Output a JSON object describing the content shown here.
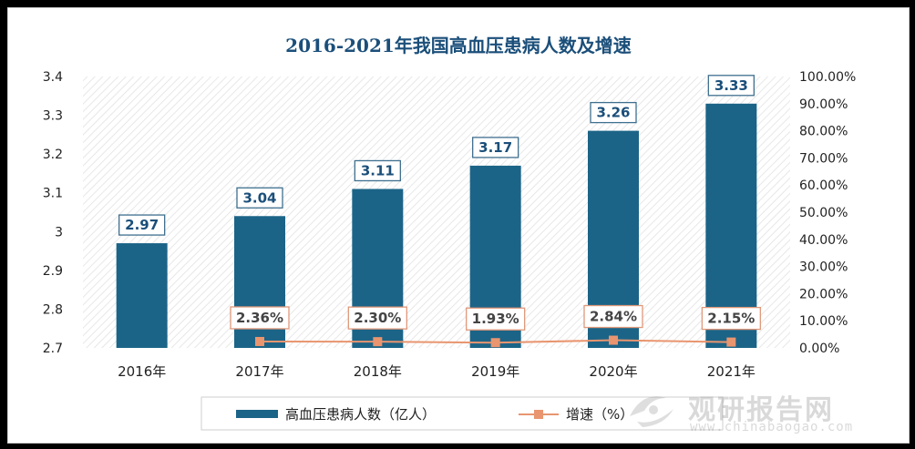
{
  "chart_data": {
    "type": "bar",
    "title": "2016-2021年我国高血压患病人数及增速",
    "categories": [
      "2016年",
      "2017年",
      "2018年",
      "2019年",
      "2020年",
      "2021年"
    ],
    "series": [
      {
        "name": "高血压患病人数（亿人）",
        "type": "bar",
        "axis": "left",
        "values": [
          2.97,
          3.04,
          3.11,
          3.17,
          3.26,
          3.33
        ],
        "labels": [
          "2.97",
          "3.04",
          "3.11",
          "3.17",
          "3.26",
          "3.33"
        ],
        "color": "#1b6487"
      },
      {
        "name": "增速（%）",
        "type": "line",
        "axis": "right",
        "values": [
          null,
          2.36,
          2.3,
          1.93,
          2.84,
          2.15
        ],
        "labels": [
          "",
          "2.36%",
          "2.30%",
          "1.93%",
          "2.84%",
          "2.15%"
        ],
        "color": "#e9956f"
      }
    ],
    "y_left": {
      "range": [
        2.7,
        3.4
      ],
      "ticks": [
        "2.7",
        "2.8",
        "2.9",
        "3",
        "3.1",
        "3.2",
        "3.3",
        "3.4"
      ]
    },
    "y_right": {
      "range": [
        0,
        100
      ],
      "ticks": [
        "0.00%",
        "10.00%",
        "20.00%",
        "30.00%",
        "40.00%",
        "50.00%",
        "60.00%",
        "70.00%",
        "80.00%",
        "90.00%",
        "100.00%"
      ]
    },
    "grid": false,
    "legend_position": "bottom"
  },
  "watermark": {
    "main": "观研报告网",
    "sub": "www.chinabaogao.com"
  }
}
